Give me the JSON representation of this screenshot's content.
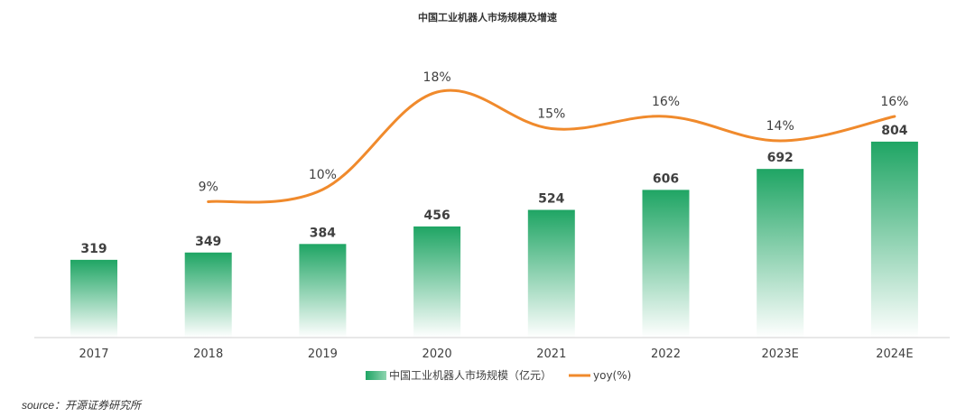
{
  "chart_data": {
    "type": "bar+line",
    "title": "中国工业机器人市场规模及增速",
    "categories": [
      "2017",
      "2018",
      "2019",
      "2020",
      "2021",
      "2022",
      "2023E",
      "2024E"
    ],
    "series": [
      {
        "name": "中国工业机器人市场规模（亿元）",
        "type": "bar",
        "values": [
          319,
          349,
          384,
          456,
          524,
          606,
          692,
          804
        ],
        "labels": [
          "319",
          "349",
          "384",
          "456",
          "524",
          "606",
          "692",
          "804"
        ],
        "color": "#1fa564"
      },
      {
        "name": "yoy(%)",
        "type": "line",
        "values": [
          null,
          9,
          10,
          18,
          15,
          16,
          14,
          16
        ],
        "labels": [
          "",
          "9%",
          "10%",
          "18%",
          "15%",
          "16%",
          "14%",
          "16%"
        ],
        "color": "#f08a2c"
      }
    ],
    "bar_ylim": [
      0,
      900
    ],
    "line_ylim": [
      0,
      20
    ],
    "legend": {
      "bar": "中国工业机器人市场规模（亿元）",
      "line": "yoy(%)",
      "position": "bottom-center"
    }
  },
  "source": "source：开源证券研究所"
}
